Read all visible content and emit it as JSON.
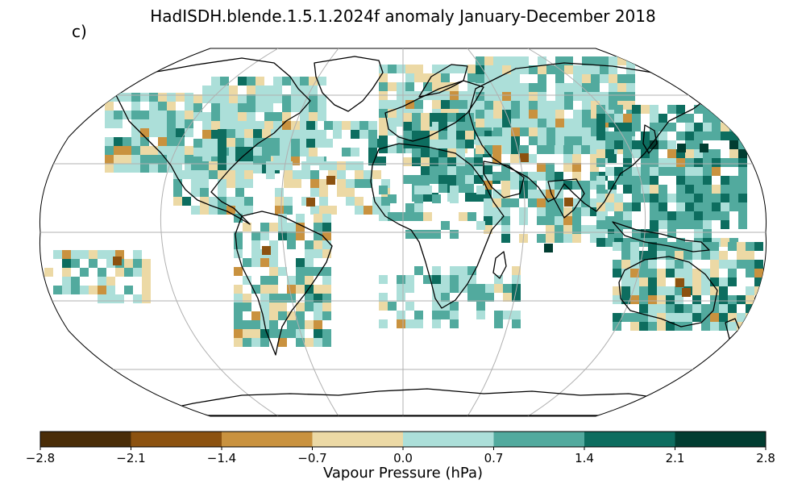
{
  "figure": {
    "title": "HadISDH.blende.1.5.1.2024f anomaly January-December 2018",
    "panel_label": "c)"
  },
  "colorbar": {
    "label": "Vapour Pressure (hPa)",
    "ticks": [
      "−2.8",
      "−2.1",
      "−1.4",
      "−0.7",
      "0.0",
      "0.7",
      "1.4",
      "2.1",
      "2.8"
    ],
    "bin_colors": [
      "#4a2d08",
      "#8c5210",
      "#c9923f",
      "#ecd9a5",
      "#acdfd9",
      "#52aa9e",
      "#0d6d5f",
      "#013d31"
    ]
  },
  "map": {
    "projection": "Robinson",
    "gridlines": true,
    "legend_placement": "bottom",
    "anomaly_boxes_note_free": true
  }
}
